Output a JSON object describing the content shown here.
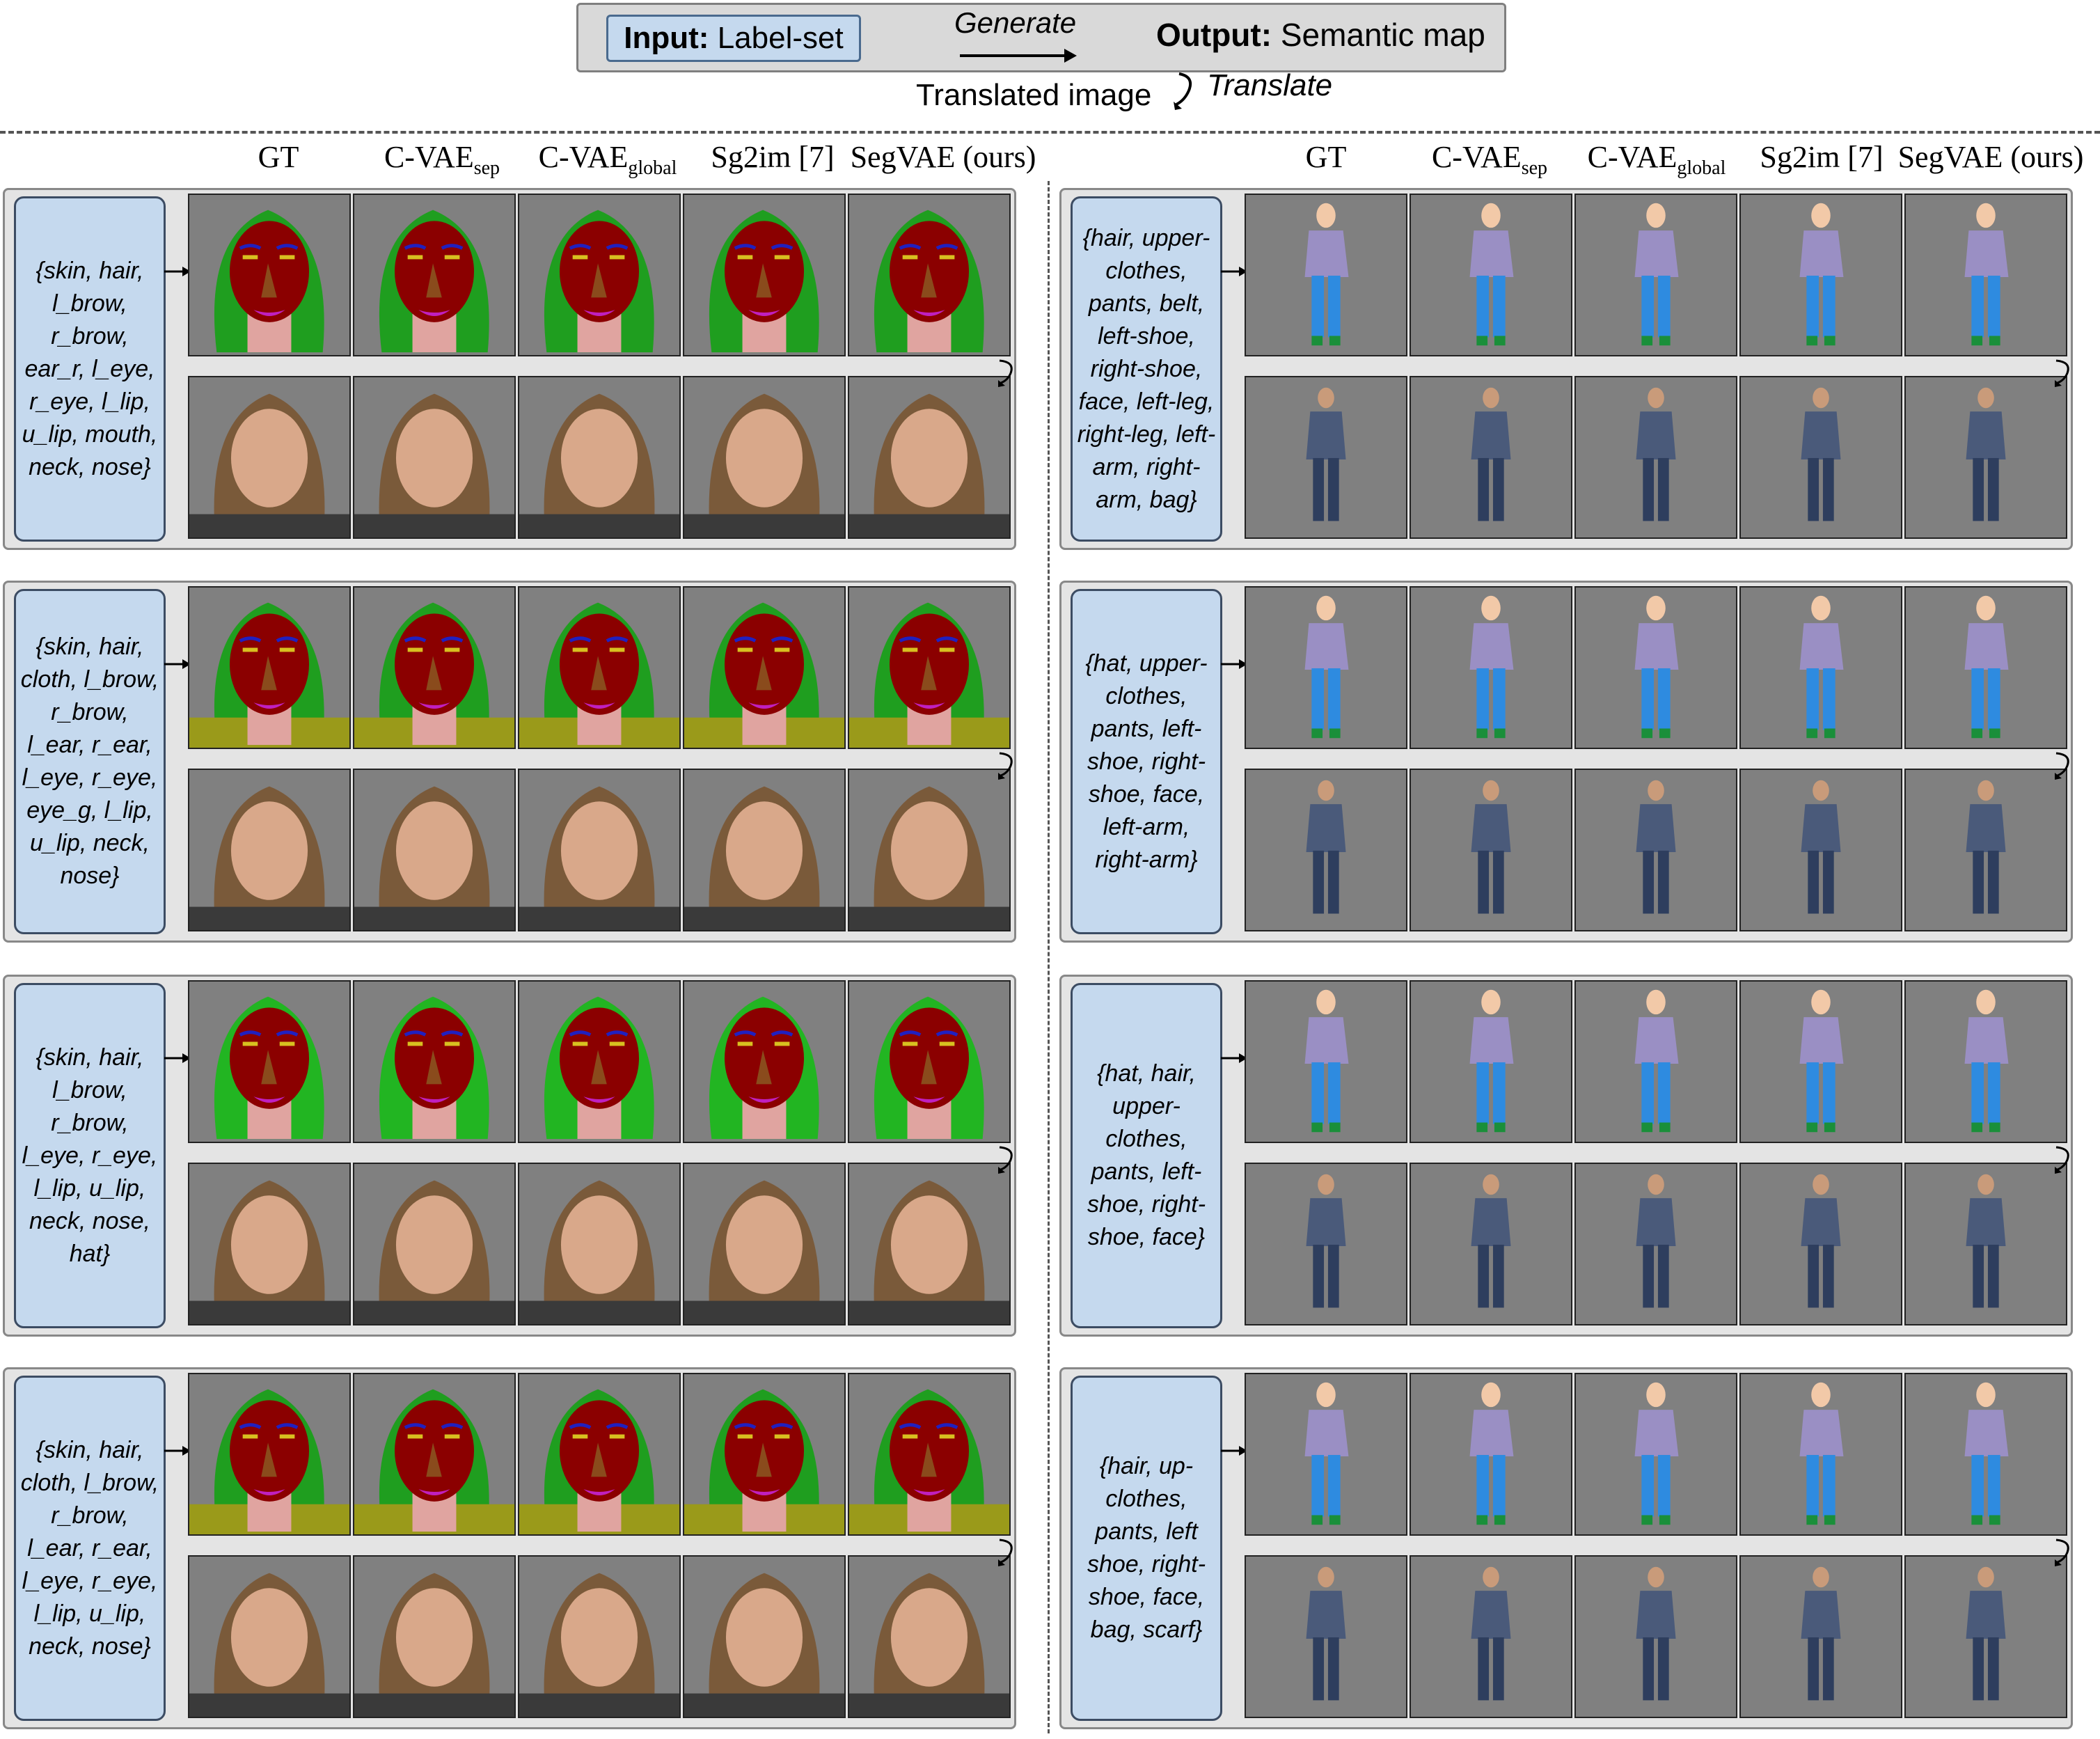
{
  "header": {
    "input_bold": "Input:",
    "input_text": "Label-set",
    "generate": "Generate",
    "output_bold": "Output:",
    "output_text": "Semantic map",
    "translated_image": "Translated image",
    "translate": "Translate"
  },
  "columns": [
    {
      "main": "GT",
      "sub": ""
    },
    {
      "main": "C-VAE",
      "sub": "sep"
    },
    {
      "main": "C-VAE",
      "sub": "global"
    },
    {
      "main": "Sg2im [7]",
      "sub": ""
    },
    {
      "main": "SegVAE (ours)",
      "sub": ""
    }
  ],
  "face_rows": [
    {
      "labels": "{skin, hair, l_brow, r_brow, ear_r, l_eye, r_eye, l_lip, u_lip, mouth, neck, nose}"
    },
    {
      "labels": "{skin, hair, cloth, l_brow, r_brow, l_ear, r_ear, l_eye, r_eye, eye_g, l_lip, u_lip, neck, nose}"
    },
    {
      "labels": "{skin, hair, l_brow, r_brow, l_eye, r_eye, l_lip, u_lip, neck, nose, hat}"
    },
    {
      "labels": "{skin, hair, cloth, l_brow, r_brow, l_ear, r_ear, l_eye, r_eye, l_lip, u_lip, neck, nose}"
    }
  ],
  "body_rows": [
    {
      "labels": "{hair, upper-clothes, pants, belt, left-shoe, right-shoe, face, left-leg, right-leg, left-arm, right-arm, bag}"
    },
    {
      "labels": "{hat, upper-clothes, pants, left-shoe, right-shoe, face, left-arm, right-arm}"
    },
    {
      "labels": "{hat, hair, upper-clothes, pants, left-shoe, right-shoe, face}"
    },
    {
      "labels": "{hair, up-clothes, pants, left shoe, right-shoe, face, bag, scarf}"
    }
  ],
  "colors": {
    "tile_bg": "#808080",
    "face_skin": "#8b0000",
    "face_hair": "#1f9e1f",
    "face_neck": "#e0a4a0",
    "face_cloth": "#9a9a1a",
    "body_top": "#9a8fc4",
    "body_pants": "#2e8be0",
    "label_box": "#c5d9ee"
  }
}
